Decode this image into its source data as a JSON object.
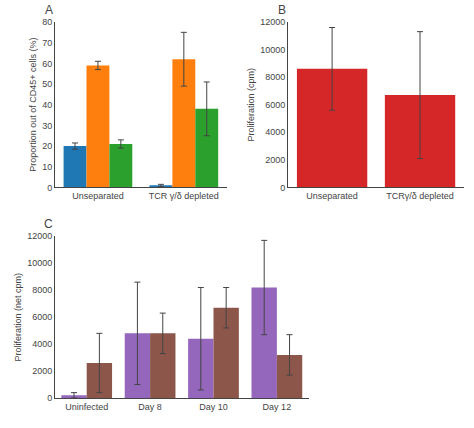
{
  "chart_data": [
    {
      "type": "bar",
      "title": "A",
      "categories": [
        "Unseparated",
        "TCR γ/δ depleted"
      ],
      "series": [
        {
          "values": [
            20,
            1
          ],
          "errors": [
            1.5,
            0.5
          ]
        },
        {
          "values": [
            59,
            62
          ],
          "errors": [
            2,
            13
          ]
        },
        {
          "values": [
            21,
            38
          ],
          "errors": [
            2,
            13
          ]
        }
      ],
      "ylabel": "Proportion out of CD45+ cells (%)",
      "ylim": [
        0,
        80
      ],
      "yticks": [
        0,
        10,
        20,
        30,
        40,
        50,
        60,
        70,
        80
      ],
      "grid": false
    },
    {
      "type": "bar",
      "title": "B",
      "categories": [
        "Unseparated",
        "TCRγ/δ depleted"
      ],
      "values": [
        8600,
        6700
      ],
      "errors": [
        3000,
        4600
      ],
      "ylabel": "Proliferation (cpm)",
      "ylim": [
        0,
        12000
      ],
      "yticks": [
        0,
        2000,
        4000,
        6000,
        8000,
        10000,
        12000
      ],
      "grid": false
    },
    {
      "type": "bar",
      "title": "C",
      "categories": [
        "Uninfected",
        "Day 8",
        "Day 10",
        "Day 12"
      ],
      "series": [
        {
          "values": [
            200,
            4800,
            4400,
            8200
          ],
          "errors": [
            200,
            3800,
            3800,
            3500
          ]
        },
        {
          "values": [
            2600,
            4800,
            6700,
            3200
          ],
          "errors": [
            2200,
            1500,
            1500,
            1500
          ]
        }
      ],
      "ylabel": "Proliferation (net cpm)",
      "ylim": [
        0,
        12000
      ],
      "yticks": [
        0,
        2000,
        4000,
        6000,
        8000,
        10000,
        12000
      ],
      "grid": false
    }
  ]
}
